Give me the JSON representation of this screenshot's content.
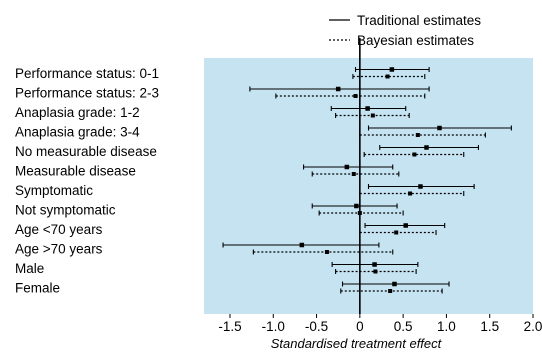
{
  "chart_data": {
    "type": "forest",
    "xlabel": "Standardised treatment effect",
    "xlim": [
      -1.8,
      2.0
    ],
    "xticks": [
      -1.5,
      -1.0,
      -0.5,
      0,
      0.5,
      1.0,
      1.5,
      2.0
    ],
    "xtick_labels": [
      "-1.5",
      "-1.0",
      "-0.5",
      "0",
      "0.5",
      "1.0",
      "1.5",
      "2.0"
    ],
    "reference_line": 0,
    "panel_color": "#c6e3f2",
    "legend_position": "top-right",
    "legend": [
      {
        "label": "Traditional estimates",
        "style": "solid"
      },
      {
        "label": "Bayesian estimates",
        "style": "dotted"
      }
    ],
    "categories": [
      "Performance status: 0-1",
      "Performance status: 2-3",
      "Anaplasia grade: 1-2",
      "Anaplasia grade: 3-4",
      "No measurable disease",
      "Measurable disease",
      "Symptomatic",
      "Not symptomatic",
      "Age <70 years",
      "Age >70 years",
      "Male",
      "Female"
    ],
    "series": [
      {
        "name": "Traditional estimates",
        "style": "solid",
        "estimate": [
          0.37,
          -0.25,
          0.09,
          0.92,
          0.77,
          -0.15,
          0.7,
          -0.04,
          0.53,
          -0.67,
          0.17,
          0.4
        ],
        "lower": [
          -0.05,
          -1.27,
          -0.33,
          0.1,
          0.23,
          -0.65,
          0.1,
          -0.55,
          0.06,
          -1.58,
          -0.32,
          -0.2
        ],
        "upper": [
          0.8,
          0.8,
          0.53,
          1.75,
          1.37,
          0.38,
          1.32,
          0.43,
          0.98,
          0.22,
          0.67,
          1.03
        ]
      },
      {
        "name": "Bayesian estimates",
        "style": "dotted",
        "estimate": [
          0.32,
          -0.05,
          0.15,
          0.67,
          0.63,
          -0.07,
          0.58,
          0.0,
          0.42,
          -0.38,
          0.18,
          0.35
        ],
        "lower": [
          -0.08,
          -0.97,
          -0.28,
          0.0,
          0.05,
          -0.55,
          0.0,
          -0.47,
          0.0,
          -1.23,
          -0.28,
          -0.22
        ],
        "upper": [
          0.75,
          0.75,
          0.57,
          1.45,
          1.2,
          0.45,
          1.2,
          0.5,
          0.88,
          0.38,
          0.65,
          0.95
        ]
      }
    ]
  }
}
